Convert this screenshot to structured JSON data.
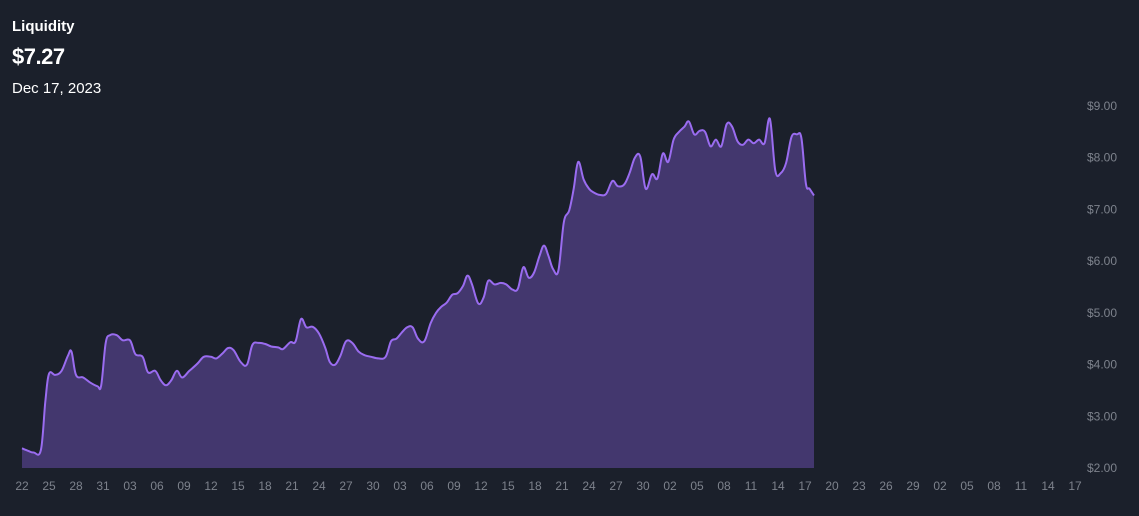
{
  "header": {
    "title": "Liquidity",
    "value": "$7.27",
    "date": "Dec 17, 2023"
  },
  "chart_data": {
    "type": "area",
    "title": "Liquidity",
    "ylim": [
      2,
      9
    ],
    "y_ticks": [
      {
        "value": 9,
        "label": "$9.00"
      },
      {
        "value": 8,
        "label": "$8.00"
      },
      {
        "value": 7,
        "label": "$7.00"
      },
      {
        "value": 6,
        "label": "$6.00"
      },
      {
        "value": 5,
        "label": "$5.00"
      },
      {
        "value": 4,
        "label": "$4.00"
      },
      {
        "value": 3,
        "label": "$3.00"
      },
      {
        "value": 2,
        "label": "$2.00"
      }
    ],
    "x_ticks": [
      "22",
      "25",
      "28",
      "31",
      "03",
      "06",
      "09",
      "12",
      "15",
      "18",
      "21",
      "24",
      "27",
      "30",
      "03",
      "06",
      "09",
      "12",
      "15",
      "18",
      "21",
      "24",
      "27",
      "30",
      "02",
      "05",
      "08",
      "11",
      "14",
      "17",
      "20",
      "23",
      "26",
      "29",
      "02",
      "05",
      "08",
      "11",
      "14",
      "17"
    ],
    "grid": false,
    "colors": {
      "line": "#9a6cf0",
      "fill": "#43376e",
      "background": "#1b202b",
      "ticks": "#7d828c"
    },
    "series": [
      {
        "values": [
          [
            0,
            2.38
          ],
          [
            0.7,
            2.33
          ],
          [
            1.3,
            2.3
          ],
          [
            2.1,
            2.35
          ],
          [
            2.6,
            3.3
          ],
          [
            3.0,
            3.82
          ],
          [
            3.7,
            3.8
          ],
          [
            4.4,
            3.88
          ],
          [
            5.1,
            4.17
          ],
          [
            5.5,
            4.25
          ],
          [
            6.0,
            3.8
          ],
          [
            6.8,
            3.75
          ],
          [
            7.6,
            3.65
          ],
          [
            8.4,
            3.58
          ],
          [
            8.8,
            3.6
          ],
          [
            9.3,
            4.42
          ],
          [
            9.8,
            4.57
          ],
          [
            10.5,
            4.57
          ],
          [
            11.2,
            4.47
          ],
          [
            12.0,
            4.47
          ],
          [
            12.6,
            4.2
          ],
          [
            13.4,
            4.15
          ],
          [
            14.0,
            3.85
          ],
          [
            14.8,
            3.88
          ],
          [
            15.4,
            3.7
          ],
          [
            16.0,
            3.6
          ],
          [
            16.6,
            3.7
          ],
          [
            17.2,
            3.88
          ],
          [
            17.8,
            3.75
          ],
          [
            18.6,
            3.88
          ],
          [
            19.5,
            4.02
          ],
          [
            20.2,
            4.15
          ],
          [
            21.0,
            4.15
          ],
          [
            21.6,
            4.12
          ],
          [
            22.3,
            4.22
          ],
          [
            22.9,
            4.32
          ],
          [
            23.5,
            4.28
          ],
          [
            24.3,
            4.05
          ],
          [
            25.0,
            4.0
          ],
          [
            25.6,
            4.38
          ],
          [
            26.3,
            4.42
          ],
          [
            27.0,
            4.4
          ],
          [
            27.7,
            4.35
          ],
          [
            28.5,
            4.33
          ],
          [
            29.0,
            4.3
          ],
          [
            29.8,
            4.43
          ],
          [
            30.4,
            4.45
          ],
          [
            31.0,
            4.88
          ],
          [
            31.6,
            4.72
          ],
          [
            32.3,
            4.73
          ],
          [
            33.0,
            4.6
          ],
          [
            33.7,
            4.32
          ],
          [
            34.2,
            4.05
          ],
          [
            34.8,
            4.0
          ],
          [
            35.4,
            4.18
          ],
          [
            36.0,
            4.45
          ],
          [
            36.7,
            4.42
          ],
          [
            37.4,
            4.25
          ],
          [
            38.1,
            4.18
          ],
          [
            38.8,
            4.15
          ],
          [
            39.6,
            4.12
          ],
          [
            40.4,
            4.15
          ],
          [
            41.0,
            4.45
          ],
          [
            41.6,
            4.5
          ],
          [
            42.2,
            4.62
          ],
          [
            42.8,
            4.72
          ],
          [
            43.4,
            4.72
          ],
          [
            44.0,
            4.5
          ],
          [
            44.7,
            4.45
          ],
          [
            45.4,
            4.8
          ],
          [
            46.0,
            5.0
          ],
          [
            46.6,
            5.12
          ],
          [
            47.2,
            5.2
          ],
          [
            47.8,
            5.35
          ],
          [
            48.4,
            5.38
          ],
          [
            49.0,
            5.52
          ],
          [
            49.5,
            5.72
          ],
          [
            50.0,
            5.55
          ],
          [
            50.7,
            5.18
          ],
          [
            51.3,
            5.3
          ],
          [
            51.8,
            5.62
          ],
          [
            52.5,
            5.55
          ],
          [
            53.2,
            5.58
          ],
          [
            53.8,
            5.55
          ],
          [
            54.5,
            5.45
          ],
          [
            55.1,
            5.47
          ],
          [
            55.7,
            5.88
          ],
          [
            56.3,
            5.68
          ],
          [
            56.9,
            5.78
          ],
          [
            57.5,
            6.1
          ],
          [
            58.0,
            6.3
          ],
          [
            58.5,
            6.1
          ],
          [
            59.0,
            5.85
          ],
          [
            59.6,
            5.82
          ],
          [
            60.2,
            6.75
          ],
          [
            60.8,
            6.98
          ],
          [
            61.3,
            7.4
          ],
          [
            61.8,
            7.92
          ],
          [
            62.4,
            7.58
          ],
          [
            63.0,
            7.4
          ],
          [
            63.6,
            7.32
          ],
          [
            64.2,
            7.28
          ],
          [
            64.9,
            7.3
          ],
          [
            65.6,
            7.55
          ],
          [
            66.2,
            7.45
          ],
          [
            66.9,
            7.48
          ],
          [
            67.5,
            7.7
          ],
          [
            68.1,
            8.0
          ],
          [
            68.7,
            8.02
          ],
          [
            69.3,
            7.4
          ],
          [
            70.0,
            7.68
          ],
          [
            70.6,
            7.6
          ],
          [
            71.2,
            8.08
          ],
          [
            71.8,
            7.92
          ],
          [
            72.4,
            8.35
          ],
          [
            73.0,
            8.5
          ],
          [
            73.6,
            8.6
          ],
          [
            74.1,
            8.7
          ],
          [
            74.7,
            8.45
          ],
          [
            75.3,
            8.52
          ],
          [
            75.9,
            8.5
          ],
          [
            76.5,
            8.22
          ],
          [
            77.1,
            8.35
          ],
          [
            77.7,
            8.22
          ],
          [
            78.3,
            8.65
          ],
          [
            78.9,
            8.6
          ],
          [
            79.5,
            8.32
          ],
          [
            80.1,
            8.25
          ],
          [
            80.7,
            8.35
          ],
          [
            81.3,
            8.28
          ],
          [
            81.9,
            8.35
          ],
          [
            82.5,
            8.28
          ],
          [
            83.1,
            8.75
          ],
          [
            83.7,
            7.75
          ],
          [
            84.3,
            7.7
          ],
          [
            84.9,
            7.9
          ],
          [
            85.5,
            8.4
          ],
          [
            86.1,
            8.45
          ],
          [
            86.6,
            8.38
          ],
          [
            87.1,
            7.5
          ],
          [
            87.5,
            7.4
          ],
          [
            88.0,
            7.27
          ]
        ]
      }
    ]
  }
}
